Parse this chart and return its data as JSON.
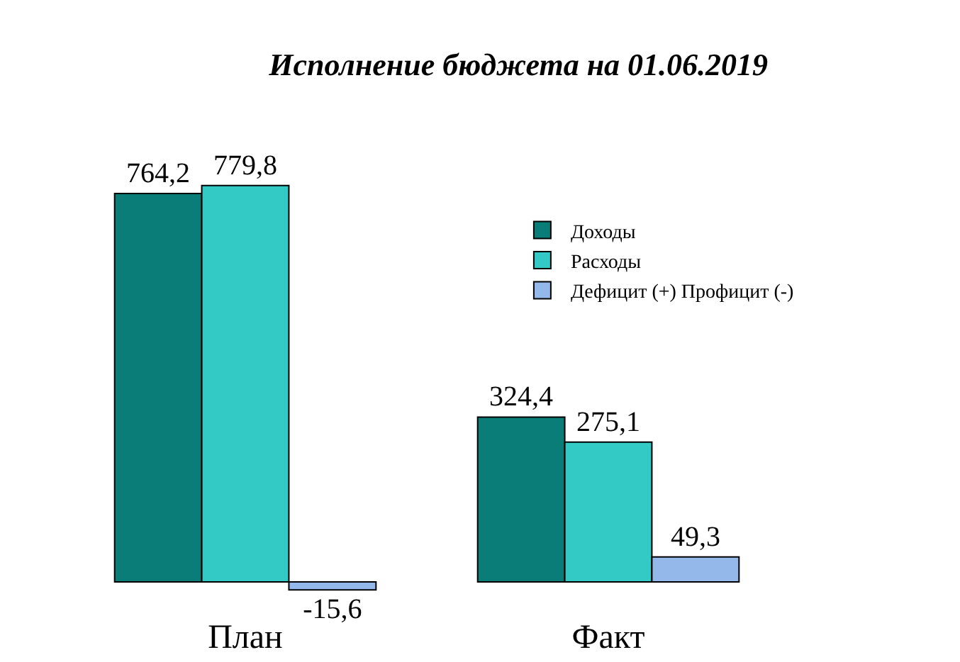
{
  "chart_data": {
    "type": "bar",
    "title": "Исполнение бюджета на 01.06.2019",
    "categories": [
      "План",
      "Факт"
    ],
    "series": [
      {
        "name": "Доходы",
        "color": "#0b7d79",
        "values": [
          764.2,
          324.4
        ],
        "value_labels": [
          "764,2",
          "324,4"
        ]
      },
      {
        "name": "Расходы",
        "color": "#33c9c4",
        "values": [
          779.8,
          275.1
        ],
        "value_labels": [
          "779,8",
          "275,1"
        ]
      },
      {
        "name": "Дефицит (+) Профицит (-)",
        "color": "#94b8ea",
        "values": [
          -15.6,
          49.3
        ],
        "value_labels": [
          "-15,6",
          "49,3"
        ]
      }
    ],
    "legend": "top right",
    "grid": false
  }
}
